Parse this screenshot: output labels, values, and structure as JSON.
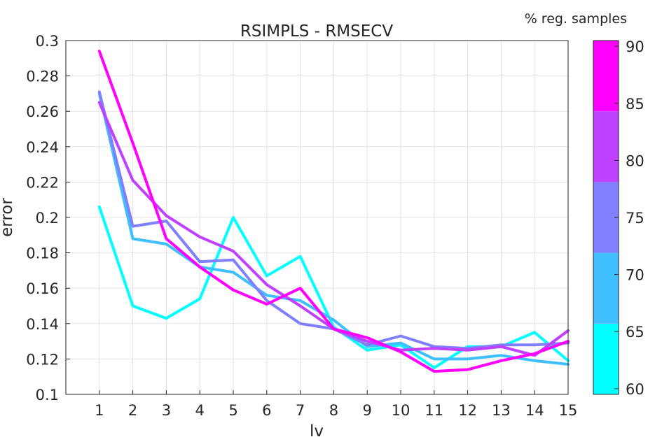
{
  "chart_data": {
    "type": "line",
    "title": "RSIMPLS - RMSECV",
    "xlabel": "lv",
    "ylabel": "error",
    "xlim": [
      0,
      15
    ],
    "ylim": [
      0.1,
      0.3
    ],
    "xticks": [
      1,
      2,
      3,
      4,
      5,
      6,
      7,
      8,
      9,
      10,
      11,
      12,
      13,
      14,
      15
    ],
    "yticks": [
      0.1,
      0.12,
      0.14,
      0.16,
      0.18,
      0.2,
      0.22,
      0.24,
      0.26,
      0.28,
      0.3
    ],
    "ytick_labels": [
      "0.1",
      "0.12",
      "0.14",
      "0.16",
      "0.18",
      "0.2",
      "0.22",
      "0.24",
      "0.26",
      "0.28",
      "0.3"
    ],
    "grid": true,
    "x": [
      1,
      2,
      3,
      4,
      5,
      6,
      7,
      8,
      9,
      10,
      11,
      12,
      13,
      14,
      15
    ],
    "series": [
      {
        "color": "#00ffff",
        "values": [
          0.206,
          0.15,
          0.143,
          0.154,
          0.2,
          0.167,
          0.178,
          0.138,
          0.125,
          0.128,
          0.115,
          0.127,
          0.127,
          0.135,
          0.119
        ]
      },
      {
        "color": "#40bfff",
        "values": [
          0.27,
          0.188,
          0.185,
          0.172,
          0.169,
          0.156,
          0.153,
          0.142,
          0.127,
          0.129,
          0.12,
          0.12,
          0.122,
          0.119,
          0.117
        ]
      },
      {
        "color": "#8080ff",
        "values": [
          0.271,
          0.195,
          0.198,
          0.175,
          0.176,
          0.153,
          0.14,
          0.137,
          0.128,
          0.133,
          0.127,
          0.126,
          0.128,
          0.128,
          0.129
        ]
      },
      {
        "color": "#bf40ff",
        "values": [
          0.265,
          0.221,
          0.201,
          0.189,
          0.181,
          0.162,
          0.15,
          0.137,
          0.13,
          0.125,
          0.126,
          0.125,
          0.127,
          0.122,
          0.136
        ]
      },
      {
        "color": "#ff00ff",
        "values": [
          0.294,
          0.242,
          0.188,
          0.172,
          0.159,
          0.151,
          0.16,
          0.137,
          0.132,
          0.124,
          0.113,
          0.114,
          0.119,
          0.123,
          0.13
        ]
      }
    ],
    "colorbar": {
      "label": "% reg. samples",
      "range": [
        59.5,
        90.5
      ],
      "ticks": [
        60,
        65,
        70,
        75,
        80,
        85,
        90
      ],
      "bands": [
        {
          "from": 59.5,
          "to": 65.7,
          "color": "#00ffff"
        },
        {
          "from": 65.7,
          "to": 71.9,
          "color": "#40bfff"
        },
        {
          "from": 71.9,
          "to": 78.1,
          "color": "#8080ff"
        },
        {
          "from": 78.1,
          "to": 84.3,
          "color": "#bf40ff"
        },
        {
          "from": 84.3,
          "to": 90.5,
          "color": "#ff00ff"
        }
      ]
    }
  }
}
